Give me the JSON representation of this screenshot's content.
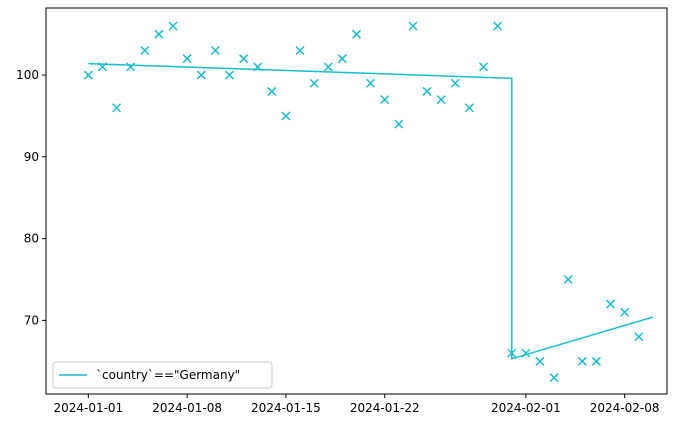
{
  "chart_data": {
    "type": "scatter",
    "title": "",
    "xlabel": "",
    "ylabel": "",
    "x_type": "date",
    "xlim": [
      "2023-12-29",
      "2024-02-11"
    ],
    "ylim": [
      61.0,
      108.2
    ],
    "x_ticks": [
      "2024-01-01",
      "2024-01-08",
      "2024-01-15",
      "2024-01-22",
      "2024-02-01",
      "2024-02-08"
    ],
    "y_ticks": [
      70,
      80,
      90,
      100
    ],
    "grid": false,
    "legend": {
      "placement": "lower-left",
      "entries": [
        "`country`==\"Germany\""
      ]
    },
    "colors": {
      "series": "#17becf"
    },
    "points": {
      "marker": "x",
      "x": [
        "2024-01-01",
        "2024-01-02",
        "2024-01-03",
        "2024-01-04",
        "2024-01-05",
        "2024-01-06",
        "2024-01-07",
        "2024-01-08",
        "2024-01-09",
        "2024-01-10",
        "2024-01-11",
        "2024-01-12",
        "2024-01-13",
        "2024-01-14",
        "2024-01-15",
        "2024-01-16",
        "2024-01-17",
        "2024-01-18",
        "2024-01-19",
        "2024-01-20",
        "2024-01-21",
        "2024-01-22",
        "2024-01-23",
        "2024-01-24",
        "2024-01-25",
        "2024-01-26",
        "2024-01-27",
        "2024-01-28",
        "2024-01-29",
        "2024-01-30",
        "2024-01-31",
        "2024-02-01",
        "2024-02-02",
        "2024-02-03",
        "2024-02-04",
        "2024-02-05",
        "2024-02-06",
        "2024-02-07",
        "2024-02-08",
        "2024-02-09"
      ],
      "y": [
        100,
        101,
        96,
        101,
        103,
        105,
        106,
        102,
        100,
        103,
        100,
        102,
        101,
        98,
        95,
        103,
        99,
        101,
        102,
        105,
        99,
        97,
        94,
        106,
        98,
        97,
        99,
        96,
        101,
        106,
        66,
        66,
        65,
        63,
        75,
        65,
        65,
        72,
        71,
        68
      ]
    },
    "series": [
      {
        "name": "`country`==\"Germany\"",
        "type": "line",
        "x": [
          "2024-01-01",
          "2024-01-31",
          "2024-01-31",
          "2024-02-10"
        ],
        "y": [
          101.4,
          99.6,
          65.3,
          70.4
        ]
      }
    ]
  }
}
